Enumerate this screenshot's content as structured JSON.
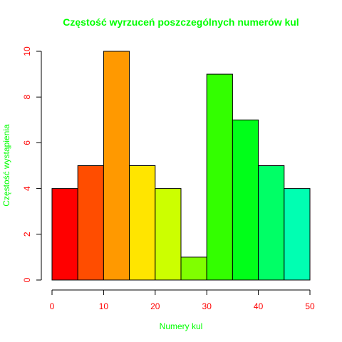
{
  "chart_data": {
    "type": "bar",
    "title": "Częstość wyrzuceń poszczególnych numerów kul",
    "xlabel": "Numery kul",
    "ylabel": "Częstość wystąpienia",
    "bins": [
      {
        "from": 0,
        "to": 5,
        "value": 4,
        "color": "#FF0000"
      },
      {
        "from": 5,
        "to": 10,
        "value": 5,
        "color": "#FF4D00"
      },
      {
        "from": 10,
        "to": 15,
        "value": 10,
        "color": "#FF9900"
      },
      {
        "from": 15,
        "to": 20,
        "value": 5,
        "color": "#FFE500"
      },
      {
        "from": 20,
        "to": 25,
        "value": 4,
        "color": "#CCFF00"
      },
      {
        "from": 25,
        "to": 30,
        "value": 1,
        "color": "#80FF00"
      },
      {
        "from": 30,
        "to": 35,
        "value": 9,
        "color": "#33FF00"
      },
      {
        "from": 35,
        "to": 40,
        "value": 7,
        "color": "#00FF19"
      },
      {
        "from": 40,
        "to": 45,
        "value": 5,
        "color": "#00FF66"
      },
      {
        "from": 45,
        "to": 50,
        "value": 4,
        "color": "#00FFB2"
      }
    ],
    "xlim": [
      0,
      50
    ],
    "ylim": [
      0,
      10
    ],
    "xticks": [
      "0",
      "10",
      "20",
      "30",
      "40",
      "50"
    ],
    "yticks": [
      "0",
      "2",
      "4",
      "6",
      "8",
      "10"
    ],
    "grid": false,
    "colors": {
      "title": "#00FF00",
      "axis_label": "#00FF00",
      "tick_label": "#FF0000",
      "axis_line": "#000000",
      "bar_border": "#000000"
    }
  }
}
